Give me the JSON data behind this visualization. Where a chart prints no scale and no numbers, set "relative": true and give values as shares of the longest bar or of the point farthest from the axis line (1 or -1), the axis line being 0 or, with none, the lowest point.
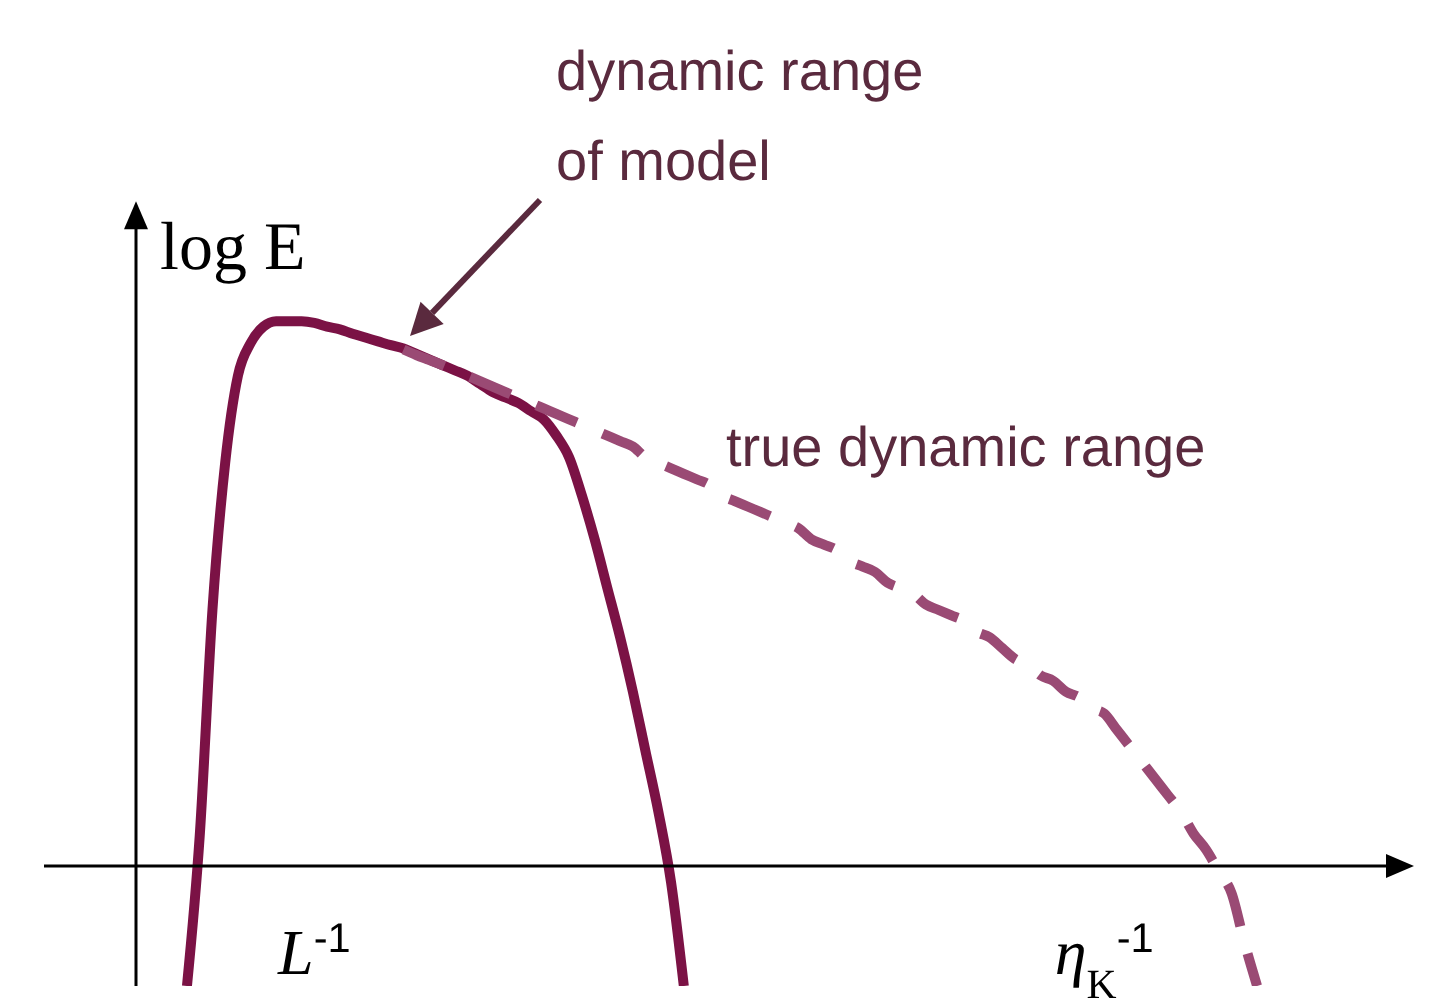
{
  "chart_data": {
    "type": "line",
    "relative": true,
    "ylabel": "log E",
    "categories": [
      null,
      null,
      null,
      null,
      null,
      null,
      null,
      null,
      null,
      null,
      null,
      null,
      null,
      null,
      "L$^{-1}$",
      null,
      null,
      null,
      null,
      null,
      null,
      null,
      null,
      null,
      null,
      null,
      null,
      null,
      null,
      null,
      null,
      null,
      null,
      null,
      null,
      null,
      null,
      null,
      null,
      null,
      null,
      null,
      null,
      null,
      null,
      null,
      null,
      null,
      null,
      null,
      null,
      null,
      null,
      null,
      null,
      null,
      null,
      null,
      null,
      null,
      null,
      null,
      null,
      null,
      null,
      null,
      null,
      null,
      null,
      null,
      null,
      null,
      null,
      null,
      null,
      null,
      "η$_{K}$$^{-1}$",
      null,
      null,
      null,
      null,
      null,
      null,
      null,
      null,
      null,
      null,
      null,
      null,
      null,
      null,
      null,
      null,
      null,
      null,
      null,
      null,
      null,
      null,
      null,
      null
    ],
    "series": [
      {
        "color": "#7b1245",
        "line_style": "solid",
        "values": [
          null,
          null,
          null,
          null,
          -0.22,
          0.055,
          0.47,
          0.74,
          0.9,
          0.96,
          0.99,
          1.0,
          1.0,
          1.0,
          0.997,
          0.99,
          0.985,
          0.977,
          0.97,
          0.963,
          0.956,
          0.95,
          0.94,
          0.93,
          0.92,
          0.91,
          0.9,
          0.885,
          0.87,
          0.86,
          0.85,
          0.835,
          0.82,
          0.79,
          0.75,
          0.68,
          0.6,
          0.51,
          0.42,
          0.32,
          0.21,
          0.1,
          -0.03,
          -0.22,
          null,
          null,
          null,
          null,
          null,
          null,
          null,
          null,
          null,
          null,
          null,
          null,
          null,
          null,
          null,
          null,
          null,
          null,
          null,
          null,
          null,
          null,
          null,
          null,
          null,
          null,
          null,
          null,
          null,
          null,
          null,
          null,
          null,
          null,
          null,
          null,
          null,
          null,
          null,
          null,
          null,
          null,
          null,
          null,
          null,
          null,
          null,
          null,
          null,
          null,
          null,
          null,
          null,
          null,
          null,
          null,
          null
        ]
      },
      {
        "color": "#9a4a74",
        "line_style": "dashed",
        "values": [
          null,
          null,
          null,
          null,
          null,
          null,
          null,
          null,
          null,
          null,
          null,
          null,
          null,
          null,
          null,
          null,
          null,
          null,
          null,
          null,
          null,
          0.948,
          0.938,
          0.929,
          0.92,
          0.91,
          0.9,
          0.89,
          0.88,
          0.87,
          0.86,
          0.85,
          0.84,
          0.83,
          0.82,
          0.81,
          0.8,
          0.79,
          0.78,
          0.77,
          0.75,
          0.74,
          0.73,
          0.72,
          0.71,
          0.7,
          0.68,
          0.67,
          0.66,
          0.65,
          0.64,
          0.63,
          0.62,
          0.6,
          0.59,
          0.58,
          0.56,
          0.55,
          0.54,
          0.52,
          0.51,
          0.5,
          0.48,
          0.47,
          0.46,
          0.45,
          0.43,
          0.42,
          0.4,
          0.38,
          0.37,
          0.35,
          0.34,
          0.32,
          0.31,
          0.29,
          0.28,
          0.25,
          0.22,
          0.19,
          0.16,
          0.13,
          0.1,
          0.06,
          0.03,
          -0.01,
          -0.05,
          -0.14,
          -0.22,
          null,
          null,
          null,
          null,
          null,
          null,
          null,
          null,
          null,
          null,
          null,
          null
        ]
      }
    ],
    "annotations": [
      "dynamic range of model",
      "true dynamic range"
    ],
    "marker": "none"
  }
}
